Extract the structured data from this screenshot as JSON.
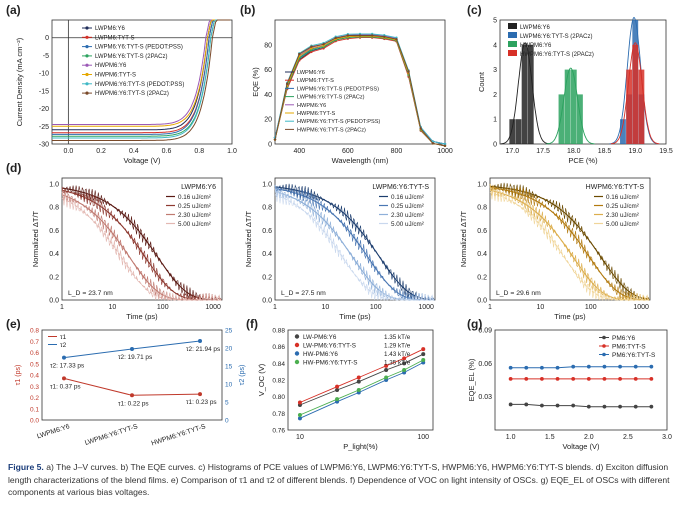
{
  "caption": {
    "label": "Figure 5.",
    "text": "a) The J–V curves. b) The EQE curves. c) Histograms of PCE values of LWPM6:Y6, LWPM6:Y6:TYT-S, HWPM6:Y6, HWPM6:Y6:TYT-S blends. d) Exciton diffusion length characterizations of the blend films. e) Comparison of τ1 and τ2 of different blends. f) Dependence of VOC on light intensity of OSCs. g) EQE_EL of OSCs with different components at various bias voltages."
  },
  "panels": {
    "a": {
      "label": "(a)",
      "xlabel": "Voltage (V)",
      "ylabel": "Current Density (mA cm⁻²)",
      "xticks": [
        "0.0",
        "0.2",
        "0.4",
        "0.6",
        "0.8",
        "1.0"
      ],
      "yticks": [
        "0",
        "-5",
        "-10",
        "-15",
        "-20",
        "-25",
        "-30"
      ],
      "legend": [
        "LWPM6:Y6",
        "LWPM6:TYT-S",
        "LWPM6:Y6:TYT-S (PEDOT:PSS)",
        "LWPM6:Y6:TYT-S (2PACz)",
        "HWPM6:Y6",
        "HWPM6:TYT-S",
        "HWPM6:Y6:TYT-S (PEDOT:PSS)",
        "HWPM6:Y6:TYT-S (2PACz)"
      ]
    },
    "b": {
      "label": "(b)",
      "xlabel": "Wavelength (nm)",
      "ylabel": "EQE (%)",
      "xticks": [
        "400",
        "600",
        "800",
        "1000"
      ],
      "yticks": [
        "0",
        "20",
        "40",
        "60",
        "80"
      ],
      "legend": [
        "LWPM6:Y6",
        "LWPM6:TYT-S",
        "LWPM6:Y6:TYT-S (PEDOT:PSS)",
        "LWPM6:Y6:TYT-S (2PACz)",
        "HWPM6:Y6",
        "HWPM6:TYT-S",
        "HWPM6:Y6:TYT-S (PEDOT:PSS)",
        "HWPM6:Y6:TYT-S (2PACz)"
      ]
    },
    "c": {
      "label": "(c)",
      "xlabel": "PCE (%)",
      "ylabel": "Count",
      "xticks": [
        "17.0",
        "17.5",
        "18.0",
        "18.5",
        "19.0",
        "19.5"
      ],
      "yticks": [
        "0",
        "1",
        "2",
        "3",
        "4",
        "5"
      ],
      "legend": [
        "LWPM6:Y6",
        "LWPM6:Y6:TYT-S (2PACz)",
        "HWPM6:Y6",
        "HWPM6:Y6:TYT-S (2PACz)"
      ]
    },
    "d": {
      "label": "(d)",
      "xlabel": "Time (ps)",
      "ylabel": "Normalized ΔT/T",
      "xticks": [
        "1",
        "10",
        "100",
        "1000"
      ],
      "yticks": [
        "0.0",
        "0.2",
        "0.4",
        "0.6",
        "0.8",
        "1.0"
      ],
      "fluences": [
        "0.16 uJ/cm²",
        "0.25 uJ/cm²",
        "2.30 uJ/cm²",
        "5.00 uJ/cm²"
      ],
      "sub": [
        {
          "title": "LWPM6:Y6",
          "ld": "L_D = 23.7 nm"
        },
        {
          "title": "LWPM6:Y6:TYT-S",
          "ld": "L_D = 27.5 nm"
        },
        {
          "title": "HWPM6:Y6:TYT-S",
          "ld": "L_D = 29.6 nm"
        }
      ]
    },
    "e": {
      "label": "(e)",
      "ylabel_left": "τ1 (ps)",
      "ylabel_right": "τ2 (ps)",
      "legend": [
        "τ1",
        "τ2"
      ],
      "yticks_left": [
        "0.0",
        "0.1",
        "0.2",
        "0.3",
        "0.4",
        "0.5",
        "0.6",
        "0.7",
        "0.8"
      ],
      "yticks_right": [
        "0",
        "5",
        "10",
        "15",
        "20",
        "25"
      ],
      "xticks": [
        "LWPM6:Y6",
        "LWPM6:Y6:TYT-S",
        "HWPM6:Y6:TYT-S"
      ],
      "t1_labels": [
        "τ1: 0.37 ps",
        "τ1: 0.22 ps",
        "τ1: 0.23 ps"
      ],
      "t2_labels": [
        "τ2: 17.33 ps",
        "τ2: 19.71 ps",
        "τ2: 21.94 ps"
      ]
    },
    "f": {
      "label": "(f)",
      "xlabel": "P_light(%)",
      "ylabel": "V_OC (V)",
      "xticks": [
        "10",
        "100"
      ],
      "yticks": [
        "0.76",
        "0.78",
        "0.80",
        "0.82",
        "0.84",
        "0.86",
        "0.88"
      ],
      "legend": [
        {
          "name": "LW-PM6:Y6",
          "slope": "1.35 kT/e"
        },
        {
          "name": "LW-PM6:Y6:TYT-S",
          "slope": "1.29 kT/e"
        },
        {
          "name": "HW-PM6:Y6",
          "slope": "1.43 kT/e"
        },
        {
          "name": "HW-PM6:Y6:TYT-S",
          "slope": "1.35 kT/e"
        }
      ]
    },
    "g": {
      "label": "(g)",
      "xlabel": "Voltage (V)",
      "ylabel": "EQE_EL (%)",
      "xticks": [
        "1.0",
        "1.5",
        "2.0",
        "2.5",
        "3.0"
      ],
      "yticks": [
        "0.03",
        "0.06",
        "0.09"
      ],
      "legend": [
        "PM6:Y6",
        "PM6:TYT-S",
        "PM6:Y6:TYT-S"
      ]
    }
  },
  "chart_data": [
    {
      "panel": "a",
      "type": "line",
      "title": "J–V curves",
      "xlabel": "Voltage (V)",
      "ylabel": "Current Density (mA cm-2)",
      "xlim": [
        -0.1,
        1.0
      ],
      "ylim": [
        -30,
        5
      ],
      "series": [
        {
          "name": "LWPM6:Y6",
          "jsc": -26.0,
          "voc": 0.85
        },
        {
          "name": "LWPM6:TYT-S",
          "jsc": -26.8,
          "voc": 0.86
        },
        {
          "name": "LWPM6:Y6:TYT-S (PEDOT:PSS)",
          "jsc": -27.3,
          "voc": 0.86
        },
        {
          "name": "LWPM6:Y6:TYT-S (2PACz)",
          "jsc": -27.8,
          "voc": 0.87
        },
        {
          "name": "HWPM6:Y6",
          "jsc": -24.5,
          "voc": 0.84
        },
        {
          "name": "HWPM6:TYT-S",
          "jsc": -25.0,
          "voc": 0.85
        },
        {
          "name": "HWPM6:Y6:TYT-S (PEDOT:PSS)",
          "jsc": -28.3,
          "voc": 0.87
        },
        {
          "name": "HWPM6:Y6:TYT-S (2PACz)",
          "jsc": -29.0,
          "voc": 0.88
        }
      ]
    },
    {
      "panel": "b",
      "type": "line",
      "title": "EQE curves",
      "xlabel": "Wavelength (nm)",
      "ylabel": "EQE (%)",
      "xlim": [
        300,
        1000
      ],
      "ylim": [
        0,
        100
      ],
      "x": [
        300,
        350,
        400,
        450,
        500,
        550,
        600,
        650,
        700,
        750,
        800,
        850,
        900,
        950,
        1000
      ],
      "series": [
        {
          "name": "LWPM6:Y6",
          "values": [
            5,
            45,
            68,
            75,
            78,
            84,
            86,
            87,
            87,
            86,
            84,
            55,
            12,
            2,
            0
          ]
        },
        {
          "name": "HWPM6:Y6:TYT-S (2PACz)",
          "values": [
            5,
            50,
            74,
            80,
            82,
            87,
            89,
            89,
            89,
            88,
            86,
            60,
            14,
            2,
            0
          ]
        }
      ]
    },
    {
      "panel": "c",
      "type": "bar",
      "title": "PCE histogram",
      "xlabel": "PCE (%)",
      "ylabel": "Count",
      "xlim": [
        16.8,
        19.5
      ],
      "ylim": [
        0,
        5
      ],
      "series": [
        {
          "name": "LWPM6:Y6",
          "x": [
            17.0,
            17.1,
            17.2,
            17.3
          ],
          "values": [
            1,
            1,
            4,
            4
          ]
        },
        {
          "name": "HWPM6:Y6",
          "x": [
            17.8,
            17.9,
            18.0,
            18.1
          ],
          "values": [
            2,
            3,
            3,
            2
          ]
        },
        {
          "name": "LWPM6:Y6:TYT-S (2PACz)",
          "x": [
            18.8,
            18.9,
            19.0,
            19.1
          ],
          "values": [
            1,
            2,
            5,
            2
          ]
        },
        {
          "name": "HWPM6:Y6:TYT-S (2PACz)",
          "x": [
            18.9,
            19.0,
            19.1
          ],
          "values": [
            3,
            4,
            3
          ]
        }
      ]
    },
    {
      "panel": "d",
      "type": "line",
      "title": "Exciton diffusion",
      "xlabel": "Time (ps)",
      "ylabel": "Normalized dT/T",
      "xscale": "log",
      "xlim": [
        1,
        1500
      ],
      "ylim": [
        0,
        1.05
      ],
      "series": [
        {
          "name": "LWPM6:Y6",
          "tau": [
            80,
            45,
            22,
            15
          ]
        },
        {
          "name": "LWPM6:Y6:TYT-S",
          "tau": [
            120,
            70,
            35,
            22
          ]
        },
        {
          "name": "HWPM6:Y6:TYT-S",
          "tau": [
            160,
            95,
            45,
            30
          ]
        }
      ]
    },
    {
      "panel": "e",
      "type": "line",
      "title": "tau comparison",
      "categories": [
        "LWPM6:Y6",
        "LWPM6:Y6:TYT-S",
        "HWPM6:Y6:TYT-S"
      ],
      "series": [
        {
          "name": "τ1",
          "axis": "left",
          "values": [
            0.37,
            0.22,
            0.23
          ],
          "ylim": [
            0,
            0.8
          ]
        },
        {
          "name": "τ2",
          "axis": "right",
          "values": [
            17.33,
            19.71,
            21.94
          ],
          "ylim": [
            0,
            25
          ]
        }
      ]
    },
    {
      "panel": "f",
      "type": "scatter",
      "title": "Voc vs light intensity",
      "xscale": "log",
      "xlim": [
        8,
        120
      ],
      "ylim": [
        0.76,
        0.88
      ],
      "x": [
        10,
        20,
        30,
        50,
        70,
        100
      ],
      "series": [
        {
          "name": "LW-PM6:Y6",
          "values": [
            0.79,
            0.808,
            0.818,
            0.832,
            0.84,
            0.851
          ]
        },
        {
          "name": "LW-PM6:Y6:TYT-S",
          "values": [
            0.793,
            0.812,
            0.823,
            0.837,
            0.846,
            0.857
          ]
        },
        {
          "name": "HW-PM6:Y6",
          "values": [
            0.774,
            0.794,
            0.805,
            0.82,
            0.829,
            0.841
          ]
        },
        {
          "name": "HW-PM6:Y6:TYT-S",
          "values": [
            0.778,
            0.797,
            0.808,
            0.823,
            0.832,
            0.844
          ]
        }
      ]
    },
    {
      "panel": "g",
      "type": "line",
      "title": "EQE_EL",
      "xlabel": "Voltage (V)",
      "ylabel": "EQE_EL (%)",
      "xlim": [
        0.8,
        3.0
      ],
      "ylim": [
        0.0,
        0.09
      ],
      "x": [
        1.0,
        1.2,
        1.4,
        1.6,
        1.8,
        2.0,
        2.2,
        2.4,
        2.6,
        2.8
      ],
      "series": [
        {
          "name": "PM6:Y6",
          "values": [
            0.023,
            0.023,
            0.022,
            0.022,
            0.022,
            0.021,
            0.021,
            0.021,
            0.021,
            0.021
          ]
        },
        {
          "name": "PM6:TYT-S",
          "values": [
            0.046,
            0.046,
            0.046,
            0.046,
            0.046,
            0.046,
            0.046,
            0.046,
            0.046,
            0.046
          ]
        },
        {
          "name": "PM6:Y6:TYT-S",
          "values": [
            0.056,
            0.056,
            0.056,
            0.056,
            0.057,
            0.057,
            0.057,
            0.057,
            0.057,
            0.057
          ]
        }
      ]
    }
  ],
  "colors": {
    "a": [
      "#1f2d5a",
      "#d73027",
      "#2b6cb0",
      "#2ca25f",
      "#9b59b6",
      "#e6a800",
      "#3fb8c6",
      "#7a4a2a"
    ],
    "c": [
      "#222222",
      "#2b6cb0",
      "#2ca25f",
      "#d73027"
    ],
    "d1": [
      "#5a1a14",
      "#8e3a31",
      "#c07a71",
      "#e3b8b2"
    ],
    "d2": [
      "#1c3d6e",
      "#4a77b3",
      "#8fb0d9",
      "#c9d8ee"
    ],
    "d3": [
      "#6b4a00",
      "#b27a0f",
      "#dcae4d",
      "#f0d599"
    ],
    "e": [
      "#c0392b",
      "#2b6cb0"
    ],
    "f": [
      "#444444",
      "#d73027",
      "#2b6cb0",
      "#4caf50"
    ],
    "g": [
      "#444444",
      "#d73027",
      "#2b6cb0"
    ]
  }
}
